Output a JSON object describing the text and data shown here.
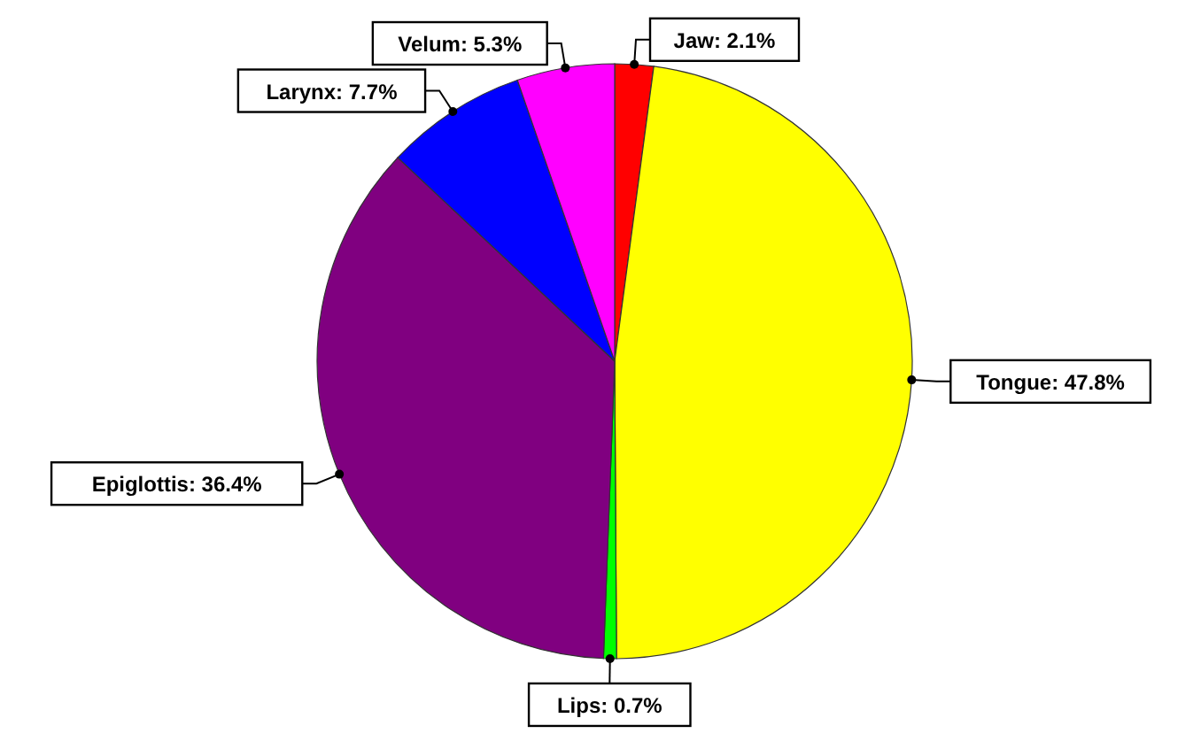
{
  "chart_data": {
    "type": "pie",
    "categories": [
      "Jaw",
      "Tongue",
      "Lips",
      "Epiglottis",
      "Larynx",
      "Velum"
    ],
    "values": [
      2.1,
      47.8,
      0.7,
      36.4,
      7.7,
      5.3
    ],
    "colors": [
      "#ff0000",
      "#ffff00",
      "#00ff00",
      "#800080",
      "#0000ff",
      "#ff00ff"
    ],
    "value_labels": [
      "2.1%",
      "47.8%",
      "0.7%",
      "36.4%",
      "7.7%",
      "5.3%"
    ]
  }
}
